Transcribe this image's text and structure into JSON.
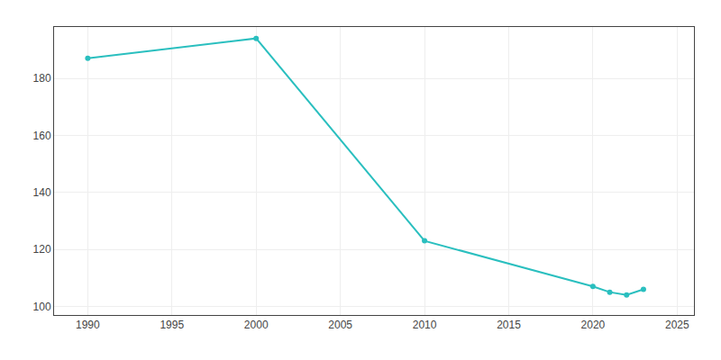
{
  "chart_data": {
    "type": "line",
    "x": [
      1990,
      2000,
      2010,
      2020,
      2021,
      2022,
      2023
    ],
    "values": [
      187,
      194,
      123,
      107,
      105,
      104,
      106
    ],
    "color": "#2abfbf",
    "marker": "circle",
    "line_style": "solid",
    "xlim": [
      1988,
      2026
    ],
    "xticks": [
      1990,
      1995,
      2000,
      2005,
      2010,
      2015,
      2020,
      2025
    ],
    "ylim": [
      97,
      198
    ],
    "yticks": [
      100,
      120,
      140,
      160,
      180
    ],
    "grid": true
  }
}
